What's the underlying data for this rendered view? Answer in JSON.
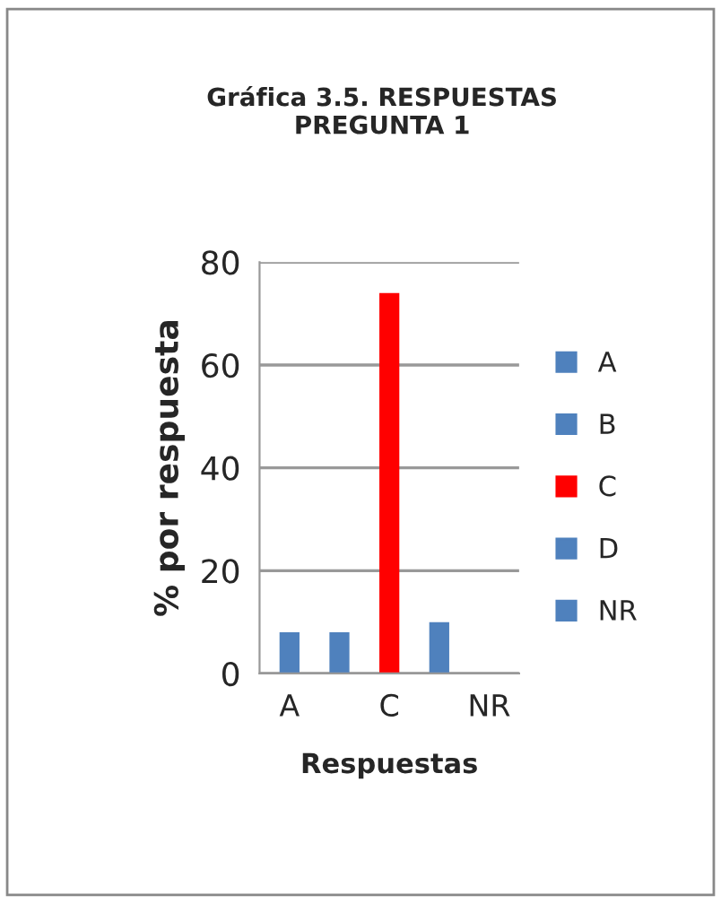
{
  "chart_data": {
    "type": "bar",
    "title": "Gráfica 3.5. RESPUESTAS\nPREGUNTA 1",
    "xlabel": "Respuestas",
    "ylabel": "% por respuesta",
    "categories": [
      "A",
      null,
      "C",
      null,
      "NR"
    ],
    "series": [
      {
        "name": "A",
        "color": "#4f81bd",
        "values": [
          8,
          null,
          null,
          null,
          null
        ]
      },
      {
        "name": "B",
        "color": "#4f81bd",
        "values": [
          null,
          8,
          null,
          null,
          null
        ]
      },
      {
        "name": "C",
        "color": "#ff0000",
        "values": [
          null,
          null,
          74,
          null,
          null
        ]
      },
      {
        "name": "D",
        "color": "#4f81bd",
        "values": [
          null,
          null,
          null,
          10,
          null
        ]
      },
      {
        "name": "NR",
        "color": "#4f81bd",
        "values": [
          null,
          null,
          null,
          null,
          0
        ]
      }
    ],
    "ylim": [
      0,
      80
    ],
    "yticks": [
      0,
      20,
      40,
      60,
      80
    ],
    "grid": "y",
    "legend": "right"
  }
}
